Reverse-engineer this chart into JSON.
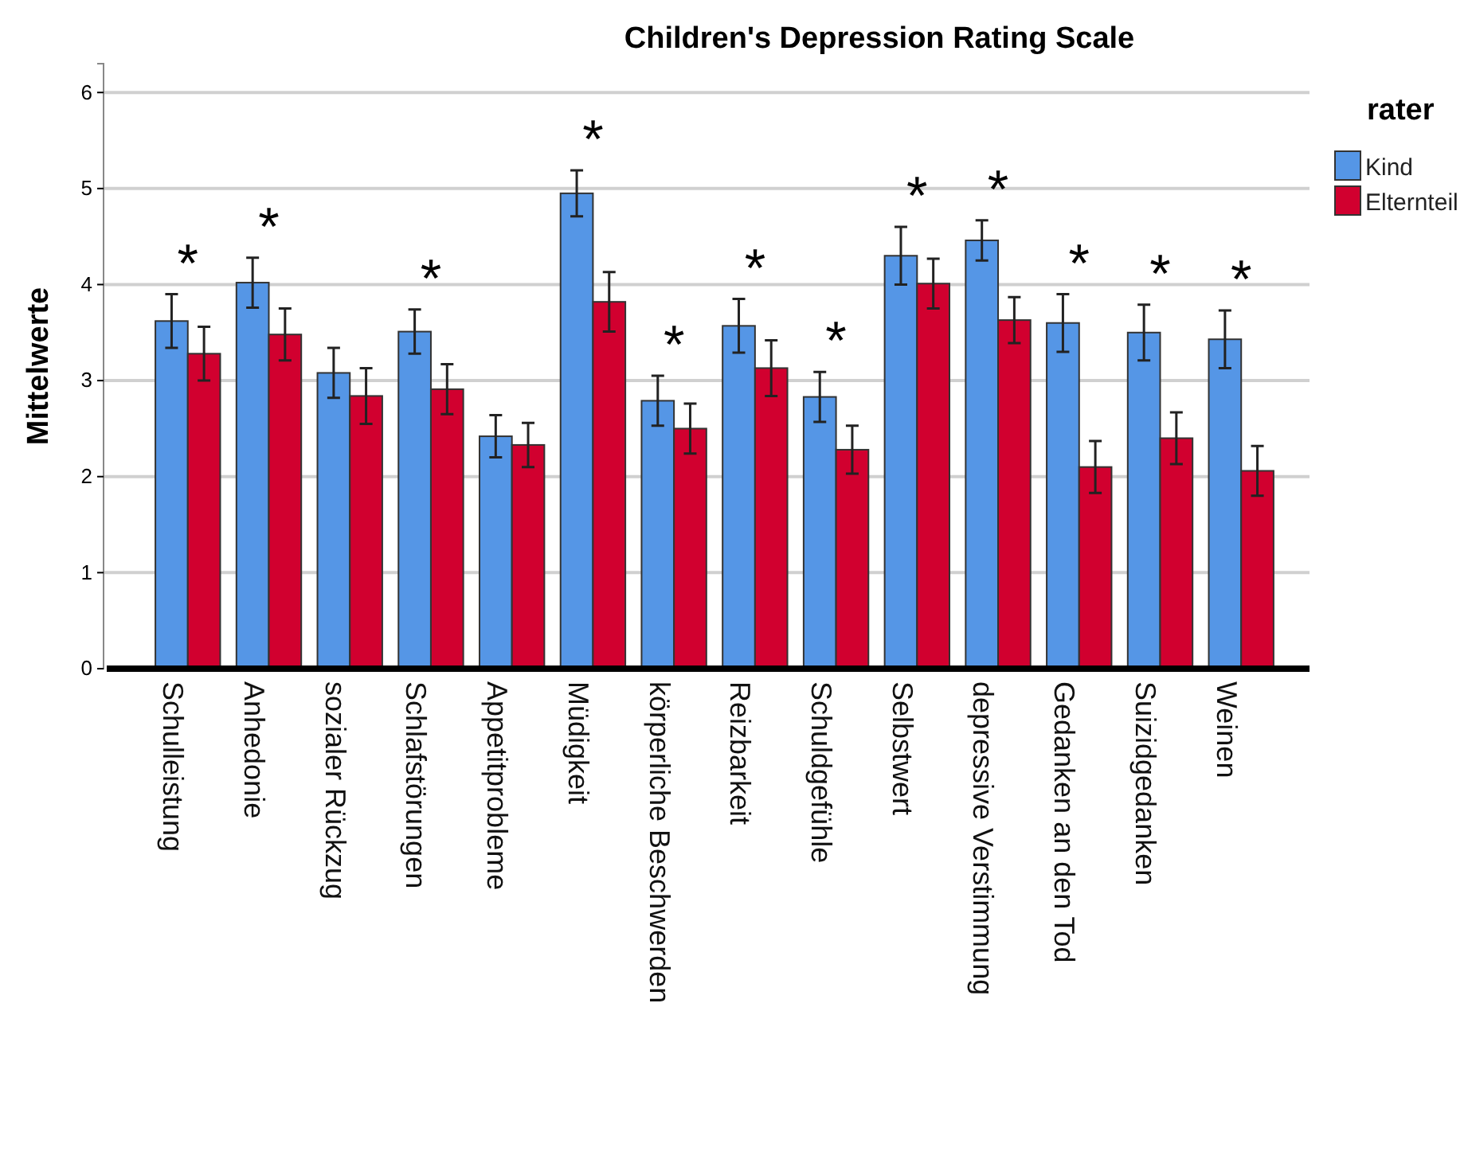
{
  "chart_data": {
    "type": "bar",
    "title": "Children's Depression Rating Scale",
    "ylabel": "Mittelwerte",
    "legend_title": "rater",
    "categories": [
      "Schulleistung",
      "Anhedonie",
      "sozialer Rückzug",
      "Schlafstörungen",
      "Appetitprobleme",
      "Müdigkeit",
      "körperliche Beschwerden",
      "Reizbarkeit",
      "Schuldgefühle",
      "Selbstwert",
      "depressive Verstimmung",
      "Gedanken an den Tod",
      "Suizidgedanken",
      "Weinen"
    ],
    "series": [
      {
        "name": "Kind",
        "color": "#5596e6",
        "values": [
          3.62,
          4.02,
          3.08,
          3.51,
          2.42,
          4.95,
          2.79,
          3.57,
          2.83,
          4.3,
          4.46,
          3.6,
          3.5,
          3.43
        ],
        "errors": [
          0.28,
          0.26,
          0.26,
          0.23,
          0.22,
          0.24,
          0.26,
          0.28,
          0.26,
          0.3,
          0.21,
          0.3,
          0.29,
          0.3
        ]
      },
      {
        "name": "Elternteil",
        "color": "#d1002f",
        "values": [
          3.28,
          3.48,
          2.84,
          2.91,
          2.33,
          3.82,
          2.5,
          3.13,
          2.28,
          4.01,
          3.63,
          2.1,
          2.4,
          2.06
        ],
        "errors": [
          0.28,
          0.27,
          0.29,
          0.26,
          0.23,
          0.31,
          0.26,
          0.29,
          0.25,
          0.26,
          0.24,
          0.27,
          0.27,
          0.26
        ]
      }
    ],
    "ylim": [
      0,
      6.3
    ],
    "yticks": [
      0,
      1,
      2,
      3,
      4,
      5,
      6
    ],
    "grid": "y",
    "legend": "top right",
    "annotations": [
      "*",
      "*",
      "*",
      "*",
      "*",
      "*",
      "*",
      "*",
      "*",
      "*",
      "*",
      "*"
    ]
  }
}
